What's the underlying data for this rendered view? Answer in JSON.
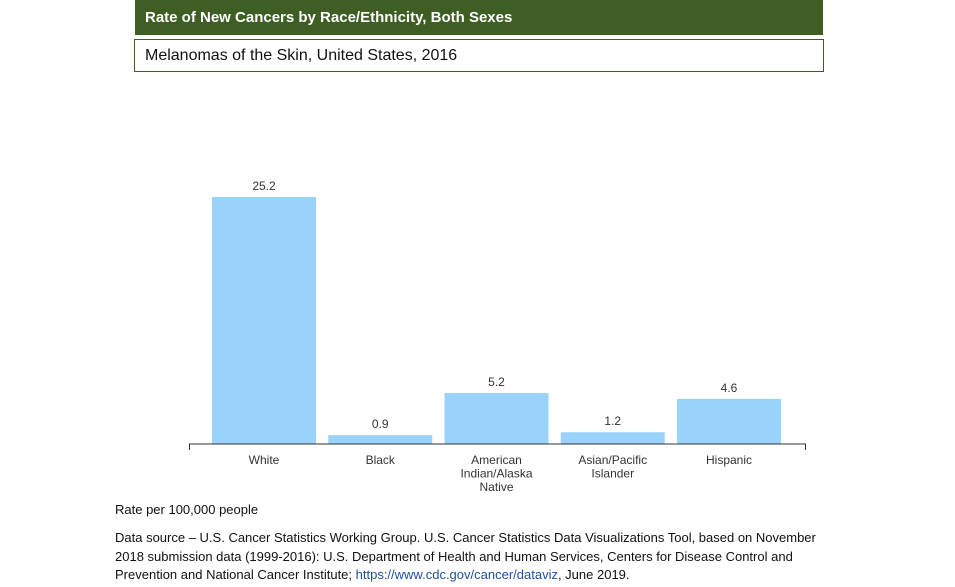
{
  "header": {
    "title": "Rate of New Cancers by Race/Ethnicity, Both Sexes",
    "subtitle": "Melanomas of the Skin, United States, 2016"
  },
  "colors": {
    "bar": "#99d2fb",
    "header_bg": "#3f5e23",
    "axis": "#333333",
    "link": "#1f4e9c"
  },
  "chart_data": {
    "type": "bar",
    "title": "Rate of New Cancers by Race/Ethnicity, Both Sexes",
    "subtitle": "Melanomas of the Skin, United States, 2016",
    "categories": [
      [
        "White"
      ],
      [
        "Black"
      ],
      [
        "American",
        "Indian/Alaska",
        "Native"
      ],
      [
        "Asian/Pacific",
        "Islander"
      ],
      [
        "Hispanic"
      ]
    ],
    "values": [
      25.2,
      0.9,
      5.2,
      1.2,
      4.6
    ],
    "value_labels": [
      "25.2",
      "0.9",
      "5.2",
      "1.2",
      "4.6"
    ],
    "ylabel": "Rate per 100,000 people",
    "ylim": [
      0,
      25.2
    ],
    "grid": false,
    "legend": "none"
  },
  "footer": {
    "y_title": "Rate per 100,000 people",
    "source_text": "Data source – U.S. Cancer Statistics Working Group. U.S. Cancer Statistics Data Visualizations Tool, based on November 2018 submission data (1999-2016): U.S. Department of Health and Human Services, Centers for Disease Control and Prevention and National Cancer Institute; ",
    "source_link": "https://www.cdc.gov/cancer/dataviz",
    "source_date": ", June 2019."
  }
}
